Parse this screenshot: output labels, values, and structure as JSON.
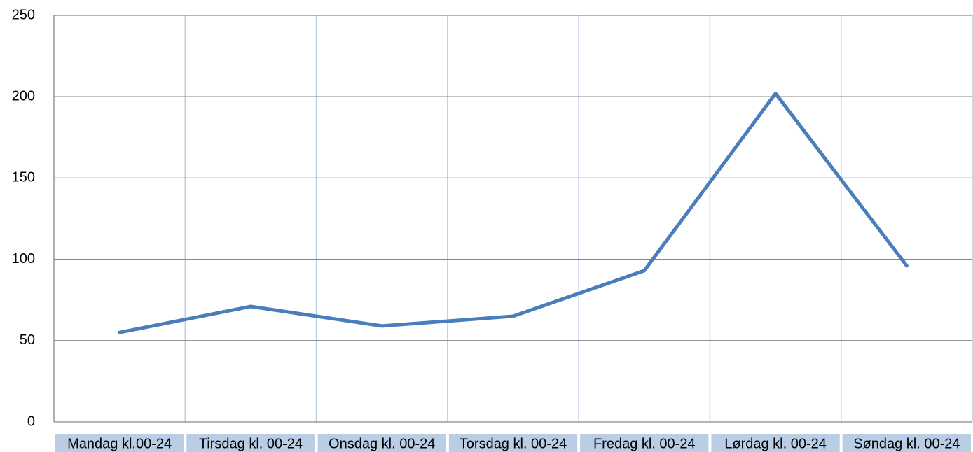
{
  "chart_data": {
    "type": "line",
    "categories": [
      "Mandag kl.00-24",
      "Tirsdag kl. 00-24",
      "Onsdag kl. 00-24",
      "Torsdag kl. 00-24",
      "Fredag kl. 00-24",
      "Lørdag kl. 00-24",
      "Søndag kl. 00-24"
    ],
    "series": [
      {
        "name": null,
        "color": "#4a7ebb",
        "values": [
          55,
          71,
          59,
          65,
          93,
          202,
          96
        ]
      }
    ],
    "ylim": [
      0,
      250
    ],
    "yticks": [
      0,
      50,
      100,
      150,
      200,
      250
    ],
    "grid": true
  }
}
